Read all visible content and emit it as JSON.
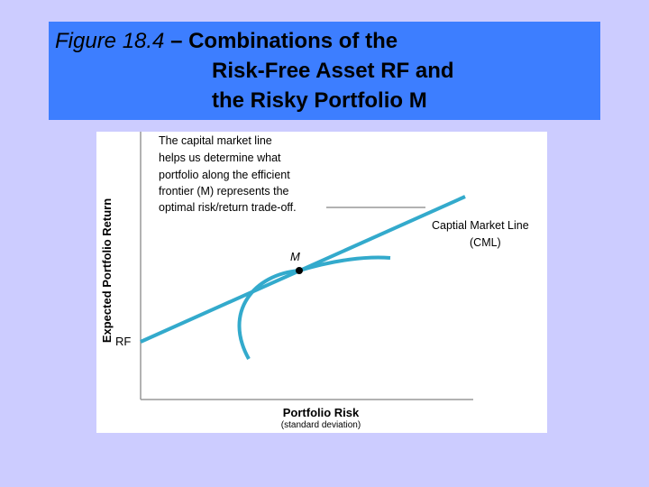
{
  "title": {
    "figure_label": "Figure 18.4",
    "line1_rest": " – Combinations of the",
    "line2": "Risk-Free Asset RF and",
    "line3": "the Risky Portfolio M"
  },
  "diagram": {
    "y_axis_label": "Expected Portfolio Return",
    "x_axis_label": "Portfolio Risk",
    "x_axis_sublabel": "(standard deviation)",
    "rf_label": "RF",
    "m_label": "M",
    "cml_label_line1": "Captial Market Line",
    "cml_label_line2": "(CML)",
    "annotation_lines": [
      "The capital market line",
      "helps us determine what",
      "portfolio along the efficient",
      "frontier (M) represents the",
      "optimal risk/return trade-off."
    ],
    "colors": {
      "curve": "#33aacc",
      "axis": "#999999",
      "text": "#000000"
    }
  }
}
